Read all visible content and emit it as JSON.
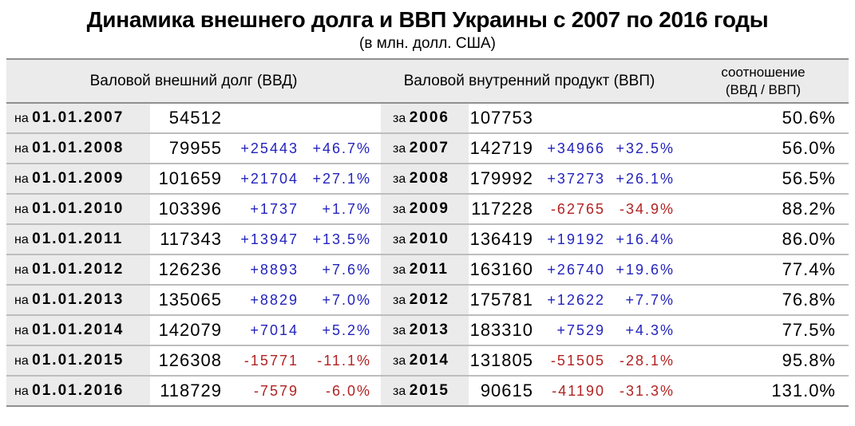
{
  "title": "Динамика внешнего долга и ВВП Украины с 2007 по 2016 годы",
  "subtitle": "(в млн. долл. США)",
  "colors": {
    "positive": "#2323bd",
    "negative": "#b22222",
    "band_background": "#ebebeb",
    "row_line": "#bdbdbd",
    "strong_line": "#8f8f8f"
  },
  "table": {
    "headers": {
      "debt_section": "Валовой внешний долг (ВВД)",
      "gdp_section": "Валовой внутренний продукт (ВВП)",
      "ratio_line1": "соотношение",
      "ratio_line2": "(ВВД / ВВП)"
    },
    "debt_date_prefix": "на",
    "gdp_year_prefix": "за",
    "rows": [
      {
        "debt_date": "01.01.2007",
        "debt_value": "54512",
        "debt_change": "",
        "debt_pct": "",
        "gdp_year": "2006",
        "gdp_value": "107753",
        "gdp_change": "",
        "gdp_pct": "",
        "ratio": "50.6%"
      },
      {
        "debt_date": "01.01.2008",
        "debt_value": "79955",
        "debt_change": "+25443",
        "debt_pct": "+46.7%",
        "gdp_year": "2007",
        "gdp_value": "142719",
        "gdp_change": "+34966",
        "gdp_pct": "+32.5%",
        "ratio": "56.0%"
      },
      {
        "debt_date": "01.01.2009",
        "debt_value": "101659",
        "debt_change": "+21704",
        "debt_pct": "+27.1%",
        "gdp_year": "2008",
        "gdp_value": "179992",
        "gdp_change": "+37273",
        "gdp_pct": "+26.1%",
        "ratio": "56.5%"
      },
      {
        "debt_date": "01.01.2010",
        "debt_value": "103396",
        "debt_change": "+1737",
        "debt_pct": "+1.7%",
        "gdp_year": "2009",
        "gdp_value": "117228",
        "gdp_change": "-62765",
        "gdp_pct": "-34.9%",
        "ratio": "88.2%"
      },
      {
        "debt_date": "01.01.2011",
        "debt_value": "117343",
        "debt_change": "+13947",
        "debt_pct": "+13.5%",
        "gdp_year": "2010",
        "gdp_value": "136419",
        "gdp_change": "+19192",
        "gdp_pct": "+16.4%",
        "ratio": "86.0%"
      },
      {
        "debt_date": "01.01.2012",
        "debt_value": "126236",
        "debt_change": "+8893",
        "debt_pct": "+7.6%",
        "gdp_year": "2011",
        "gdp_value": "163160",
        "gdp_change": "+26740",
        "gdp_pct": "+19.6%",
        "ratio": "77.4%"
      },
      {
        "debt_date": "01.01.2013",
        "debt_value": "135065",
        "debt_change": "+8829",
        "debt_pct": "+7.0%",
        "gdp_year": "2012",
        "gdp_value": "175781",
        "gdp_change": "+12622",
        "gdp_pct": "+7.7%",
        "ratio": "76.8%"
      },
      {
        "debt_date": "01.01.2014",
        "debt_value": "142079",
        "debt_change": "+7014",
        "debt_pct": "+5.2%",
        "gdp_year": "2013",
        "gdp_value": "183310",
        "gdp_change": "+7529",
        "gdp_pct": "+4.3%",
        "ratio": "77.5%"
      },
      {
        "debt_date": "01.01.2015",
        "debt_value": "126308",
        "debt_change": "-15771",
        "debt_pct": "-11.1%",
        "gdp_year": "2014",
        "gdp_value": "131805",
        "gdp_change": "-51505",
        "gdp_pct": "-28.1%",
        "ratio": "95.8%"
      },
      {
        "debt_date": "01.01.2016",
        "debt_value": "118729",
        "debt_change": "-7579",
        "debt_pct": "-6.0%",
        "gdp_year": "2015",
        "gdp_value": "90615",
        "gdp_change": "-41190",
        "gdp_pct": "-31.3%",
        "ratio": "131.0%"
      }
    ]
  }
}
